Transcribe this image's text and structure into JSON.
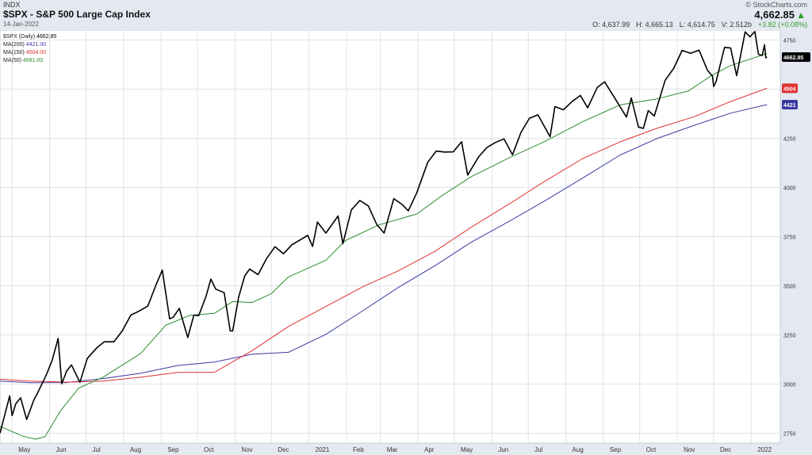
{
  "header": {
    "exchange": "INDX",
    "title": "$SPX - S&P 500 Large Cap Index",
    "date": "14-Jan-2022",
    "copyright": "© StockCharts.com",
    "last_price": "4,662.85",
    "open": "O: 4,637.99",
    "high": "H: 4,665.13",
    "low": "L: 4,614.75",
    "volume": "V: 2.512b",
    "change": "+3.82 (+0.08%)",
    "up_arrow_icon": "▲"
  },
  "colors": {
    "price": "#000000",
    "ma200": "#3a3aa0",
    "ma150": "#e03030",
    "ma50": "#2e8b2e",
    "grid": "#dde3ea",
    "background": "#ffffff",
    "frame": "#e4e9f1"
  },
  "chart_data": {
    "type": "line",
    "title": "$SPX - S&P 500 Large Cap Index",
    "ylim": [
      2700,
      4800
    ],
    "y_ticks": [
      2750,
      3000,
      3250,
      3500,
      3750,
      4000,
      4250,
      4500,
      4750
    ],
    "x_labels": [
      "May",
      "Jun",
      "Jul",
      "Aug",
      "Sep",
      "Oct",
      "Nov",
      "Dec",
      "2021",
      "Feb",
      "Mar",
      "Apr",
      "May",
      "Jun",
      "Jul",
      "Aug",
      "Sep",
      "Oct",
      "Nov",
      "Dec",
      "2022"
    ],
    "xlim": [
      "2020-04-21",
      "2022-01-25"
    ],
    "legend": [
      {
        "name": "$SPX (Daily)",
        "value": "4662.85",
        "color": "#000000"
      },
      {
        "name": "MA(200)",
        "value": "4421.00",
        "color": "#3a3aa0"
      },
      {
        "name": "MA(150)",
        "value": "4504.00",
        "color": "#e03030"
      },
      {
        "name": "MA(50)",
        "value": "4681.00",
        "color": "#2e8b2e"
      }
    ],
    "price_labels": [
      {
        "label": "4662.85",
        "value": 4662.85,
        "color": "#000000"
      },
      {
        "label": "4504",
        "value": 4504,
        "color": "#e03030"
      },
      {
        "label": "4421",
        "value": 4421,
        "color": "#3a3aa0"
      }
    ],
    "series": [
      {
        "name": "$SPX (Daily)",
        "color": "#000000",
        "points": [
          [
            "2020-04-21",
            2750
          ],
          [
            "2020-04-29",
            2940
          ],
          [
            "2020-05-01",
            2840
          ],
          [
            "2020-05-04",
            2900
          ],
          [
            "2020-05-08",
            2930
          ],
          [
            "2020-05-13",
            2820
          ],
          [
            "2020-05-19",
            2920
          ],
          [
            "2020-05-22",
            2955
          ],
          [
            "2020-05-29",
            3044
          ],
          [
            "2020-06-03",
            3120
          ],
          [
            "2020-06-08",
            3232
          ],
          [
            "2020-06-11",
            3002
          ],
          [
            "2020-06-15",
            3066
          ],
          [
            "2020-06-19",
            3098
          ],
          [
            "2020-06-26",
            3009
          ],
          [
            "2020-07-02",
            3130
          ],
          [
            "2020-07-10",
            3185
          ],
          [
            "2020-07-16",
            3215
          ],
          [
            "2020-07-24",
            3215
          ],
          [
            "2020-07-31",
            3271
          ],
          [
            "2020-08-07",
            3351
          ],
          [
            "2020-08-14",
            3372
          ],
          [
            "2020-08-21",
            3397
          ],
          [
            "2020-08-28",
            3508
          ],
          [
            "2020-09-02",
            3580
          ],
          [
            "2020-09-08",
            3332
          ],
          [
            "2020-09-11",
            3340
          ],
          [
            "2020-09-16",
            3385
          ],
          [
            "2020-09-23",
            3237
          ],
          [
            "2020-09-28",
            3351
          ],
          [
            "2020-10-02",
            3348
          ],
          [
            "2020-10-08",
            3446
          ],
          [
            "2020-10-12",
            3534
          ],
          [
            "2020-10-16",
            3483
          ],
          [
            "2020-10-23",
            3465
          ],
          [
            "2020-10-28",
            3271
          ],
          [
            "2020-10-30",
            3270
          ],
          [
            "2020-11-04",
            3443
          ],
          [
            "2020-11-09",
            3550
          ],
          [
            "2020-11-13",
            3585
          ],
          [
            "2020-11-20",
            3557
          ],
          [
            "2020-11-27",
            3638
          ],
          [
            "2020-12-04",
            3699
          ],
          [
            "2020-12-11",
            3663
          ],
          [
            "2020-12-18",
            3709
          ],
          [
            "2020-12-31",
            3756
          ],
          [
            "2021-01-04",
            3700
          ],
          [
            "2021-01-08",
            3824
          ],
          [
            "2021-01-15",
            3768
          ],
          [
            "2021-01-25",
            3855
          ],
          [
            "2021-01-29",
            3714
          ],
          [
            "2021-02-05",
            3886
          ],
          [
            "2021-02-12",
            3934
          ],
          [
            "2021-02-19",
            3906
          ],
          [
            "2021-02-26",
            3811
          ],
          [
            "2021-03-04",
            3768
          ],
          [
            "2021-03-12",
            3943
          ],
          [
            "2021-03-19",
            3913
          ],
          [
            "2021-03-24",
            3881
          ],
          [
            "2021-03-31",
            3973
          ],
          [
            "2021-04-09",
            4128
          ],
          [
            "2021-04-16",
            4185
          ],
          [
            "2021-04-23",
            4180
          ],
          [
            "2021-04-30",
            4181
          ],
          [
            "2021-05-07",
            4232
          ],
          [
            "2021-05-12",
            4063
          ],
          [
            "2021-05-21",
            4155
          ],
          [
            "2021-05-28",
            4204
          ],
          [
            "2021-06-04",
            4229
          ],
          [
            "2021-06-11",
            4247
          ],
          [
            "2021-06-18",
            4166
          ],
          [
            "2021-06-25",
            4280
          ],
          [
            "2021-07-02",
            4352
          ],
          [
            "2021-07-09",
            4369
          ],
          [
            "2021-07-19",
            4258
          ],
          [
            "2021-07-23",
            4411
          ],
          [
            "2021-07-30",
            4395
          ],
          [
            "2021-08-06",
            4436
          ],
          [
            "2021-08-13",
            4468
          ],
          [
            "2021-08-19",
            4405
          ],
          [
            "2021-08-27",
            4509
          ],
          [
            "2021-09-02",
            4537
          ],
          [
            "2021-09-10",
            4458
          ],
          [
            "2021-09-20",
            4358
          ],
          [
            "2021-09-24",
            4455
          ],
          [
            "2021-09-30",
            4307
          ],
          [
            "2021-10-04",
            4300
          ],
          [
            "2021-10-08",
            4391
          ],
          [
            "2021-10-13",
            4363
          ],
          [
            "2021-10-22",
            4545
          ],
          [
            "2021-10-29",
            4605
          ],
          [
            "2021-11-05",
            4697
          ],
          [
            "2021-11-12",
            4682
          ],
          [
            "2021-11-19",
            4698
          ],
          [
            "2021-11-26",
            4595
          ],
          [
            "2021-11-30",
            4567
          ],
          [
            "2021-12-01",
            4513
          ],
          [
            "2021-12-03",
            4538
          ],
          [
            "2021-12-10",
            4712
          ],
          [
            "2021-12-15",
            4709
          ],
          [
            "2021-12-20",
            4568
          ],
          [
            "2021-12-27",
            4791
          ],
          [
            "2021-12-31",
            4766
          ],
          [
            "2022-01-04",
            4793
          ],
          [
            "2022-01-07",
            4677
          ],
          [
            "2022-01-10",
            4671
          ],
          [
            "2022-01-12",
            4726
          ],
          [
            "2022-01-13",
            4659
          ],
          [
            "2022-01-14",
            4662.85
          ]
        ]
      },
      {
        "name": "MA(200)",
        "color": "#3a3aa0",
        "points": [
          [
            "2020-04-21",
            3015
          ],
          [
            "2020-05-15",
            3007
          ],
          [
            "2020-06-15",
            3008
          ],
          [
            "2020-07-15",
            3028
          ],
          [
            "2020-08-15",
            3055
          ],
          [
            "2020-09-15",
            3095
          ],
          [
            "2020-10-15",
            3112
          ],
          [
            "2020-11-15",
            3152
          ],
          [
            "2020-12-15",
            3162
          ],
          [
            "2021-01-15",
            3253
          ],
          [
            "2021-02-15",
            3375
          ],
          [
            "2021-03-15",
            3489
          ],
          [
            "2021-04-15",
            3602
          ],
          [
            "2021-05-15",
            3722
          ],
          [
            "2021-06-15",
            3827
          ],
          [
            "2021-07-15",
            3933
          ],
          [
            "2021-08-15",
            4048
          ],
          [
            "2021-09-15",
            4165
          ],
          [
            "2021-10-15",
            4248
          ],
          [
            "2021-11-15",
            4316
          ],
          [
            "2021-12-15",
            4378
          ],
          [
            "2022-01-14",
            4421
          ]
        ]
      },
      {
        "name": "MA(150)",
        "color": "#e03030",
        "points": [
          [
            "2020-04-21",
            3025
          ],
          [
            "2020-05-15",
            3015
          ],
          [
            "2020-06-15",
            3010
          ],
          [
            "2020-07-15",
            3015
          ],
          [
            "2020-08-15",
            3035
          ],
          [
            "2020-09-15",
            3060
          ],
          [
            "2020-10-15",
            3060
          ],
          [
            "2020-11-15",
            3170
          ],
          [
            "2020-12-15",
            3293
          ],
          [
            "2021-01-15",
            3395
          ],
          [
            "2021-02-15",
            3497
          ],
          [
            "2021-03-15",
            3574
          ],
          [
            "2021-04-15",
            3675
          ],
          [
            "2021-05-15",
            3798
          ],
          [
            "2021-06-15",
            3915
          ],
          [
            "2021-07-15",
            4033
          ],
          [
            "2021-08-15",
            4147
          ],
          [
            "2021-09-15",
            4232
          ],
          [
            "2021-10-15",
            4300
          ],
          [
            "2021-11-15",
            4360
          ],
          [
            "2021-12-15",
            4437
          ],
          [
            "2022-01-14",
            4504
          ]
        ]
      },
      {
        "name": "MA(50)",
        "color": "#2e8b2e",
        "points": [
          [
            "2020-04-21",
            2785
          ],
          [
            "2020-05-10",
            2735
          ],
          [
            "2020-05-20",
            2720
          ],
          [
            "2020-05-28",
            2732
          ],
          [
            "2020-06-10",
            2865
          ],
          [
            "2020-06-25",
            2980
          ],
          [
            "2020-07-15",
            3035
          ],
          [
            "2020-08-15",
            3155
          ],
          [
            "2020-09-05",
            3300
          ],
          [
            "2020-09-25",
            3350
          ],
          [
            "2020-10-15",
            3360
          ],
          [
            "2020-10-30",
            3420
          ],
          [
            "2020-11-15",
            3415
          ],
          [
            "2020-12-01",
            3460
          ],
          [
            "2020-12-15",
            3545
          ],
          [
            "2021-01-15",
            3630
          ],
          [
            "2021-01-31",
            3730
          ],
          [
            "2021-02-28",
            3810
          ],
          [
            "2021-03-31",
            3865
          ],
          [
            "2021-04-20",
            3955
          ],
          [
            "2021-05-15",
            4055
          ],
          [
            "2021-06-15",
            4150
          ],
          [
            "2021-07-15",
            4235
          ],
          [
            "2021-08-15",
            4335
          ],
          [
            "2021-09-15",
            4420
          ],
          [
            "2021-10-15",
            4450
          ],
          [
            "2021-11-10",
            4490
          ],
          [
            "2021-11-30",
            4572
          ],
          [
            "2021-12-15",
            4620
          ],
          [
            "2022-01-14",
            4681
          ]
        ]
      }
    ]
  }
}
